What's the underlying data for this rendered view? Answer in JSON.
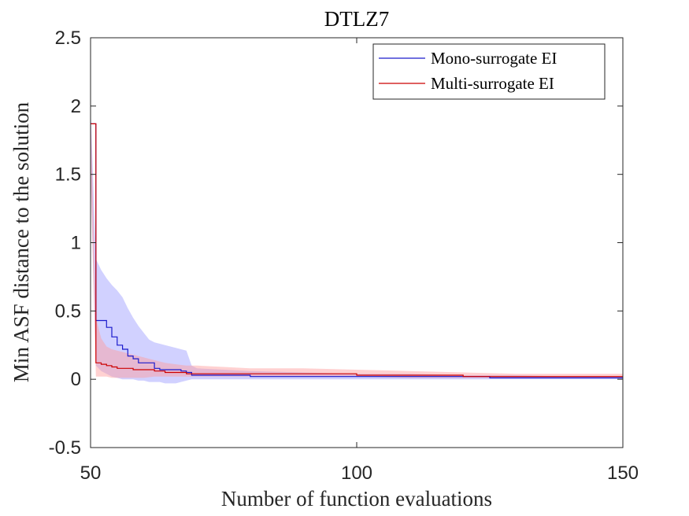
{
  "chart_data": {
    "type": "line",
    "title": "DTLZ7",
    "xlabel": "Number of function evaluations",
    "ylabel": "Min ASF distance to the solution",
    "xlim": [
      50,
      150
    ],
    "ylim": [
      -0.5,
      2.5
    ],
    "xticks": [
      50,
      100,
      150
    ],
    "xtick_labels": [
      "50",
      "100",
      "150"
    ],
    "yticks": [
      -0.5,
      0,
      0.5,
      1,
      1.5,
      2,
      2.5
    ],
    "ytick_labels": [
      "-0.5",
      "0",
      "0.5",
      "1",
      "1.5",
      "2",
      "2.5"
    ],
    "legend_position": "top-right",
    "series": [
      {
        "name": "Mono-surrogate EI",
        "color": "#1a1acc",
        "band_color": "#9999ff",
        "x": [
          50,
          51,
          52,
          53,
          54,
          55,
          56,
          57,
          58,
          59,
          60,
          61,
          62,
          63,
          64,
          65,
          66,
          67,
          68,
          69,
          70,
          75,
          80,
          90,
          100,
          110,
          120,
          125,
          130,
          140,
          150
        ],
        "values": [
          1.87,
          0.43,
          0.43,
          0.38,
          0.31,
          0.25,
          0.22,
          0.17,
          0.15,
          0.12,
          0.12,
          0.12,
          0.08,
          0.07,
          0.07,
          0.07,
          0.07,
          0.06,
          0.05,
          0.03,
          0.03,
          0.03,
          0.02,
          0.02,
          0.02,
          0.02,
          0.02,
          0.01,
          0.01,
          0.01,
          0.01
        ],
        "lower": [
          1.5,
          0.1,
          0.06,
          0.04,
          0.02,
          0.01,
          0.0,
          0.0,
          0.0,
          -0.01,
          -0.01,
          -0.02,
          -0.02,
          -0.02,
          -0.03,
          -0.03,
          -0.03,
          -0.02,
          -0.01,
          0.0,
          0.0,
          0.0,
          0.0,
          0.0,
          0.0,
          0.0,
          0.0,
          0.0,
          0.0,
          0.0,
          0.0
        ],
        "upper": [
          2.0,
          0.88,
          0.8,
          0.74,
          0.69,
          0.65,
          0.6,
          0.52,
          0.45,
          0.39,
          0.34,
          0.29,
          0.27,
          0.26,
          0.25,
          0.24,
          0.23,
          0.22,
          0.21,
          0.1,
          0.08,
          0.07,
          0.06,
          0.05,
          0.04,
          0.04,
          0.03,
          0.03,
          0.03,
          0.02,
          0.02
        ]
      },
      {
        "name": "Multi-surrogate EI",
        "color": "#cc0000",
        "band_color": "#ff9999",
        "x": [
          50,
          51,
          52,
          53,
          54,
          55,
          56,
          57,
          58,
          59,
          60,
          62,
          64,
          66,
          68,
          70,
          75,
          80,
          90,
          100,
          110,
          120,
          130,
          140,
          150
        ],
        "values": [
          1.87,
          0.12,
          0.11,
          0.1,
          0.09,
          0.08,
          0.08,
          0.08,
          0.07,
          0.07,
          0.07,
          0.06,
          0.05,
          0.05,
          0.04,
          0.04,
          0.04,
          0.04,
          0.04,
          0.03,
          0.03,
          0.02,
          0.02,
          0.02,
          0.02
        ],
        "lower": [
          1.5,
          0.02,
          0.02,
          0.02,
          0.01,
          0.01,
          0.01,
          0.01,
          0.01,
          0.01,
          0.01,
          0.02,
          0.02,
          0.02,
          0.02,
          0.02,
          0.02,
          0.02,
          0.02,
          0.02,
          0.01,
          0.01,
          0.01,
          0.01,
          0.01
        ],
        "upper": [
          2.0,
          0.45,
          0.3,
          0.24,
          0.22,
          0.21,
          0.2,
          0.19,
          0.18,
          0.17,
          0.16,
          0.14,
          0.12,
          0.11,
          0.1,
          0.1,
          0.09,
          0.08,
          0.08,
          0.07,
          0.06,
          0.05,
          0.04,
          0.04,
          0.04
        ]
      }
    ]
  }
}
